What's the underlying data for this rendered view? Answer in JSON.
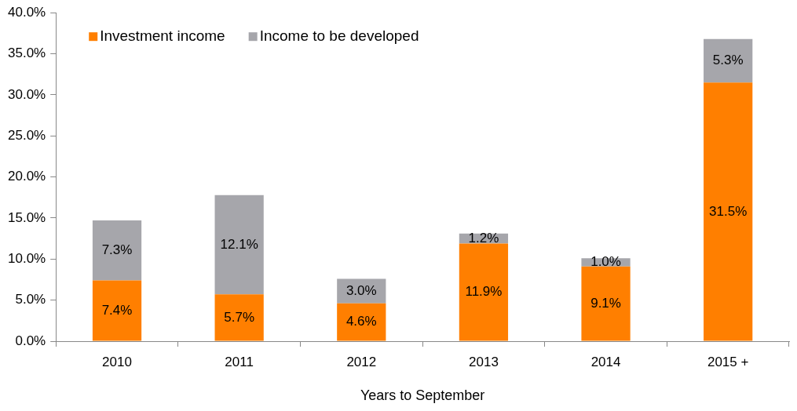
{
  "chart_data": {
    "type": "bar",
    "stacked": true,
    "xlabel": "Years to September",
    "categories": [
      "2010",
      "2011",
      "2012",
      "2013",
      "2014",
      "2015 +"
    ],
    "series": [
      {
        "name": "Investment income",
        "color": "#ff7f00",
        "values": [
          7.4,
          5.7,
          4.6,
          11.9,
          9.1,
          31.5
        ],
        "value_labels": [
          "7.4%",
          "5.7%",
          "4.6%",
          "11.9%",
          "9.1%",
          "31.5%"
        ]
      },
      {
        "name": "Income to be developed",
        "color": "#a6a6ab",
        "values": [
          7.3,
          12.1,
          3.0,
          1.2,
          1.0,
          5.3
        ],
        "value_labels": [
          "7.3%",
          "12.1%",
          "3.0%",
          "1.2%",
          "1.0%",
          "5.3%"
        ]
      }
    ],
    "ylim": [
      0,
      40
    ],
    "yticks": [
      {
        "value": 0,
        "label": "0.0%"
      },
      {
        "value": 5,
        "label": "5.0%"
      },
      {
        "value": 10,
        "label": "10.0%"
      },
      {
        "value": 15,
        "label": "15.0%"
      },
      {
        "value": 20,
        "label": "20.0%"
      },
      {
        "value": 25,
        "label": "25.0%"
      },
      {
        "value": 30,
        "label": "30.0%"
      },
      {
        "value": 35,
        "label": "35.0%"
      },
      {
        "value": 40,
        "label": "40.0%"
      }
    ],
    "grid": false,
    "legend": "top left"
  }
}
